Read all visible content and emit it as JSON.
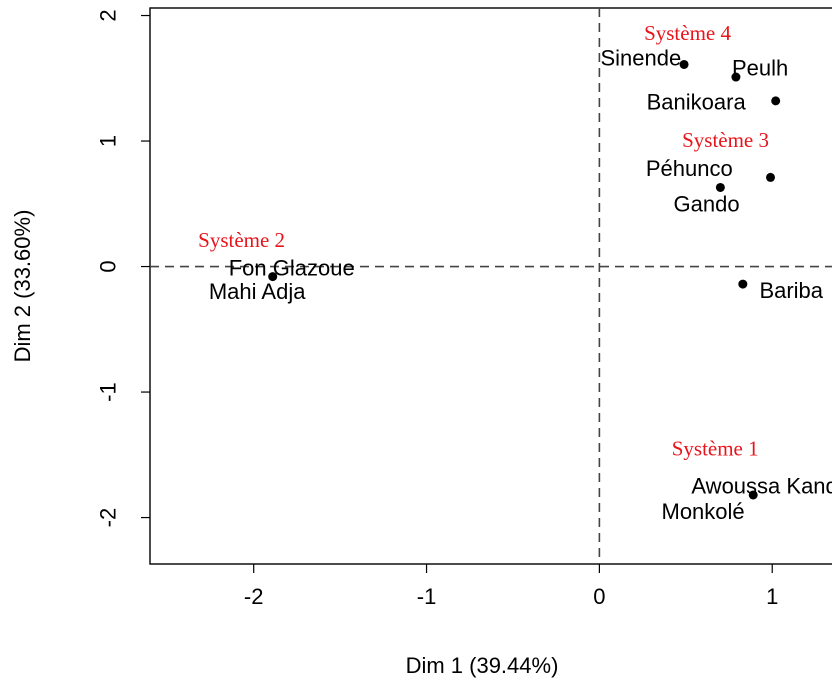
{
  "chart_data": {
    "type": "scatter",
    "xlabel": "Dim 1 (39.44%)",
    "ylabel": "Dim 2 (33.60%)",
    "xlim": [
      -2.6,
      1.45
    ],
    "ylim": [
      -2.37,
      2.06
    ],
    "x_ticks": [
      "-2",
      "-1",
      "0",
      "1"
    ],
    "x_tick_values": [
      -2,
      -1,
      0,
      1
    ],
    "y_ticks": [
      "-2",
      "-1",
      "0",
      "1",
      "2"
    ],
    "y_tick_values": [
      -2,
      -1,
      0,
      1,
      2
    ],
    "reference_lines": {
      "x": 0,
      "y": 0,
      "style": "dashed"
    },
    "colors": {
      "points": "#000000",
      "groups": "#e8141b"
    },
    "points": [
      {
        "x": 0.49,
        "y": 1.61
      },
      {
        "x": 0.79,
        "y": 1.51
      },
      {
        "x": 1.02,
        "y": 1.32
      },
      {
        "x": 0.7,
        "y": 0.63
      },
      {
        "x": 0.99,
        "y": 0.71
      },
      {
        "x": -1.89,
        "y": -0.08
      },
      {
        "x": 0.83,
        "y": -0.14
      },
      {
        "x": 0.89,
        "y": -1.82
      }
    ],
    "point_labels": [
      {
        "text": "Sinende",
        "x": 0.24,
        "y": 1.66,
        "anchor": "middle"
      },
      {
        "text": "Peulh",
        "x": 0.93,
        "y": 1.58,
        "anchor": "middle"
      },
      {
        "text": "Banikoara",
        "x": 0.56,
        "y": 1.31,
        "anchor": "middle"
      },
      {
        "text": "Péhunco",
        "x": 0.52,
        "y": 0.78,
        "anchor": "middle"
      },
      {
        "text": "Gando",
        "x": 0.62,
        "y": 0.5,
        "anchor": "middle"
      },
      {
        "text": "Fon Glazoue",
        "x": -1.78,
        "y": -0.01,
        "anchor": "middle"
      },
      {
        "text": "Mahi Adja",
        "x": -1.98,
        "y": -0.2,
        "anchor": "middle"
      },
      {
        "text": "Bariba",
        "x": 1.11,
        "y": -0.19,
        "anchor": "middle"
      },
      {
        "text": "Awoussa Kandi",
        "x": 0.97,
        "y": -1.75,
        "anchor": "middle"
      },
      {
        "text": "Monkolé",
        "x": 0.6,
        "y": -1.95,
        "anchor": "middle"
      }
    ],
    "group_labels": [
      {
        "text": "Système 4",
        "x": 0.51,
        "y": 1.86
      },
      {
        "text": "Système 3",
        "x": 0.73,
        "y": 1.01
      },
      {
        "text": "Système 2",
        "x": -2.07,
        "y": 0.21
      },
      {
        "text": "Système 1",
        "x": 0.67,
        "y": -1.45
      }
    ]
  }
}
